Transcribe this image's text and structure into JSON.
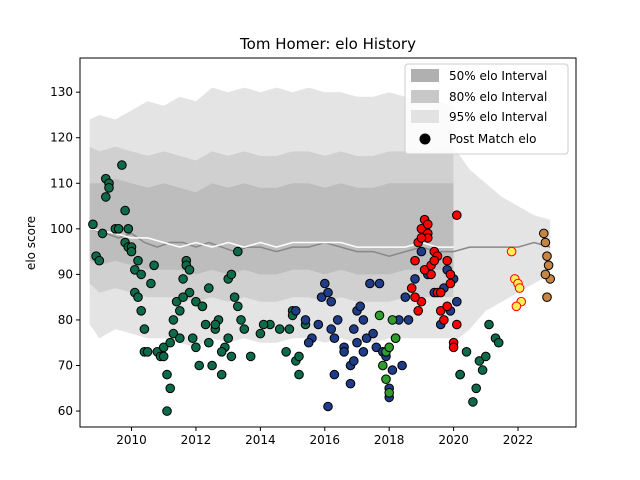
{
  "chart_data": {
    "type": "scatter",
    "title": "Tom Homer: elo History",
    "xlabel": "",
    "ylabel": "elo score",
    "xlim": [
      2008.4,
      2023.8
    ],
    "ylim": [
      56.5,
      137.5
    ],
    "xticks": [
      2010,
      2012,
      2014,
      2016,
      2018,
      2020,
      2022
    ],
    "yticks": [
      60,
      70,
      80,
      90,
      100,
      110,
      120,
      130
    ],
    "legend": {
      "position": "top-right",
      "items": [
        {
          "label": "50% elo Interval",
          "kind": "patch",
          "color": "#b0b0b0"
        },
        {
          "label": "80% elo Interval",
          "kind": "patch",
          "color": "#c8c8c8"
        },
        {
          "label": "95% elo Interval",
          "kind": "patch",
          "color": "#e2e2e2"
        },
        {
          "label": "Post Match elo",
          "kind": "dot",
          "color": "#000000"
        }
      ]
    },
    "colors": {
      "green_dark": "#0d6b4a",
      "navy": "#1f3c88",
      "green": "#2e9e2e",
      "red": "#ff0000",
      "yellow": "#ffee55",
      "yellow_edge": "#ff0000",
      "tan": "#c68642",
      "mean_line": "#888888",
      "median_line": "#ffffff"
    },
    "mean_line": {
      "x": [
        2008.7,
        2009.2,
        2009.6,
        2010.0,
        2010.4,
        2010.8,
        2011.2,
        2011.6,
        2012.0,
        2012.4,
        2012.8,
        2013.2,
        2013.6,
        2014.0,
        2014.5,
        2015.0,
        2015.5,
        2016.0,
        2016.5,
        2017.0,
        2017.5,
        2018.0,
        2018.5,
        2019.0,
        2019.5,
        2020.0,
        2020.5,
        2021.0,
        2021.5,
        2022.0,
        2022.5,
        2023.0
      ],
      "y": [
        100,
        99,
        98,
        99,
        97,
        96,
        97,
        97,
        96,
        97,
        96,
        95,
        96,
        96,
        95,
        96,
        96,
        97,
        96,
        95,
        95,
        94,
        95,
        96,
        95,
        95,
        96,
        96,
        96,
        96,
        97,
        96
      ]
    },
    "median_line": {
      "x": [
        2008.7,
        2009.5,
        2010.0,
        2010.5,
        2011.0,
        2011.5,
        2012.0,
        2012.5,
        2013.0,
        2013.5,
        2014.0,
        2014.5,
        2015.0,
        2015.5,
        2016.0,
        2016.5,
        2017.0,
        2017.5,
        2018.0,
        2018.5,
        2019.0,
        2019.5,
        2020.0
      ],
      "y": [
        100,
        99,
        98,
        98,
        97,
        96,
        97,
        96,
        97,
        96,
        97,
        96,
        97,
        97,
        97,
        97,
        96,
        96,
        96,
        96,
        97,
        96,
        96
      ]
    },
    "intervals": {
      "x": [
        2008.7,
        2009.0,
        2009.5,
        2010.0,
        2010.5,
        2011.0,
        2011.5,
        2012.0,
        2012.5,
        2013.0,
        2013.5,
        2014.0,
        2014.5,
        2015.0,
        2015.5,
        2016.0,
        2016.5,
        2017.0,
        2017.5,
        2018.0,
        2018.5,
        2019.0,
        2019.5,
        2020.0
      ],
      "p50_lo": [
        93,
        92,
        93,
        92,
        91,
        91,
        91,
        90,
        91,
        90,
        91,
        90,
        90,
        91,
        91,
        90,
        91,
        90,
        90,
        90,
        91,
        91,
        91,
        91
      ],
      "p50_hi": [
        110,
        110,
        111,
        110,
        109,
        110,
        109,
        108,
        110,
        109,
        110,
        109,
        109,
        110,
        110,
        109,
        110,
        109,
        109,
        110,
        110,
        110,
        110,
        110
      ],
      "p80_lo": [
        88,
        86,
        87,
        86,
        85,
        85,
        85,
        84,
        85,
        84,
        85,
        84,
        84,
        85,
        85,
        84,
        85,
        84,
        84,
        84,
        85,
        85,
        85,
        85
      ],
      "p80_hi": [
        118,
        117,
        118,
        117,
        116,
        117,
        116,
        115,
        117,
        116,
        117,
        116,
        116,
        117,
        117,
        116,
        117,
        116,
        116,
        117,
        117,
        117,
        117,
        117
      ],
      "p95_lo": [
        79,
        76,
        78,
        77,
        76,
        76,
        75,
        74,
        76,
        75,
        76,
        75,
        75,
        76,
        76,
        75,
        76,
        75,
        75,
        76,
        76,
        76,
        76,
        76
      ],
      "p95_hi": [
        124,
        125,
        124,
        126,
        128,
        127,
        129,
        128,
        131,
        130,
        131,
        130,
        131,
        130,
        131,
        130,
        130,
        129,
        129,
        130,
        129,
        128,
        128,
        127
      ]
    },
    "tail_band": {
      "x": [
        2020.0,
        2020.5,
        2021.0,
        2021.5,
        2022.0,
        2022.5,
        2023.0
      ],
      "hi": [
        118,
        113,
        110,
        107,
        105,
        103,
        102
      ],
      "lo": [
        75,
        78,
        82,
        84,
        86,
        88,
        90
      ]
    },
    "series": [
      {
        "name": "period-1",
        "color_key": "green_dark",
        "x": [
          2008.8,
          2008.9,
          2009.0,
          2009.1,
          2009.2,
          2009.3,
          2009.5,
          2009.6,
          2009.7,
          2009.8,
          2009.9,
          2010.0,
          2010.1,
          2010.2,
          2010.3,
          2010.4,
          2010.5,
          2010.6,
          2010.7,
          2010.8,
          2010.9,
          2011.0,
          2011.1,
          2011.2,
          2011.3,
          2011.4,
          2011.5,
          2011.6,
          2011.7,
          2011.8,
          2011.9,
          2012.0,
          2012.1,
          2012.2,
          2012.3,
          2012.4,
          2012.5,
          2012.6,
          2012.7,
          2012.8,
          2012.9,
          2013.0,
          2013.1,
          2013.2,
          2013.3,
          2013.4,
          2013.5,
          2013.7,
          2014.0,
          2014.3,
          2014.6,
          2014.8,
          2015.0,
          2015.1,
          2015.2,
          2015.4,
          2009.2,
          2009.3,
          2009.8,
          2009.9,
          2010.0,
          2010.1,
          2010.2,
          2010.3,
          2010.4,
          2011.0,
          2011.1,
          2011.2,
          2011.3,
          2011.5,
          2011.6,
          2011.7,
          2011.8,
          2012.0,
          2012.2,
          2012.4,
          2012.6,
          2012.8,
          2013.0,
          2013.1,
          2013.3,
          2014.1,
          2014.9,
          2015.0,
          2015.2
        ],
        "y": [
          101,
          94,
          93,
          99,
          111,
          110,
          100,
          100,
          114,
          97,
          96,
          96,
          91,
          93,
          90,
          73,
          73,
          88,
          92,
          73,
          72,
          72,
          60,
          65,
          77,
          84,
          82,
          89,
          93,
          86,
          76,
          74,
          70,
          83,
          79,
          75,
          70,
          78,
          80,
          68,
          74,
          76,
          72,
          85,
          95,
          80,
          78,
          72,
          77,
          79,
          78,
          73,
          82,
          71,
          68,
          79,
          107,
          109,
          104,
          100,
          95,
          86,
          85,
          82,
          78,
          74,
          68,
          75,
          80,
          76,
          85,
          92,
          91,
          84,
          83,
          87,
          79,
          73,
          89,
          90,
          83,
          79,
          78,
          81,
          72
        ]
      },
      {
        "name": "period-2",
        "color_key": "navy",
        "x": [
          2015.1,
          2015.4,
          2015.6,
          2015.8,
          2015.9,
          2016.0,
          2016.1,
          2016.2,
          2016.3,
          2016.4,
          2016.6,
          2016.8,
          2016.9,
          2017.0,
          2017.1,
          2017.2,
          2017.3,
          2017.4,
          2017.6,
          2017.8,
          2017.9,
          2018.0,
          2018.1,
          2018.2,
          2018.3,
          2018.5,
          2018.6,
          2018.8,
          2019.0,
          2019.2,
          2019.4,
          2019.6,
          2019.8,
          2020.0,
          2020.1,
          2020.2,
          2016.1,
          2016.3,
          2016.6,
          2016.8,
          2017.2,
          2017.5,
          2017.7,
          2018.0,
          2018.4,
          2019.7,
          2019.9,
          2015.5,
          2016.2,
          2016.9,
          2017.0
        ],
        "y": [
          82,
          80,
          76,
          79,
          85,
          88,
          86,
          84,
          76,
          80,
          74,
          70,
          78,
          82,
          83,
          73,
          76,
          88,
          74,
          73,
          72,
          65,
          69,
          76,
          80,
          85,
          80,
          89,
          95,
          90,
          86,
          79,
          91,
          89,
          84,
          68,
          61,
          68,
          73,
          66,
          80,
          77,
          88,
          63,
          70,
          87,
          82,
          75,
          78,
          71,
          75
        ]
      },
      {
        "name": "period-3",
        "color_key": "green",
        "x": [
          2017.7,
          2017.9,
          2018.0,
          2018.1,
          2017.9,
          2018.0,
          2017.8,
          2018.2
        ],
        "y": [
          81,
          73,
          74,
          80,
          67,
          64,
          70,
          76
        ]
      },
      {
        "name": "period-4",
        "color_key": "red",
        "x": [
          2018.7,
          2018.8,
          2018.9,
          2019.0,
          2019.1,
          2019.2,
          2019.3,
          2019.4,
          2019.5,
          2019.6,
          2019.7,
          2019.8,
          2019.9,
          2020.0,
          2020.1,
          2018.9,
          2019.0,
          2019.1,
          2019.2,
          2019.3,
          2019.5,
          2019.8,
          2019.9,
          2020.0,
          2020.1,
          2019.0,
          2019.4,
          2019.6,
          2018.8,
          2019.2
        ],
        "y": [
          87,
          93,
          97,
          100,
          102,
          99,
          90,
          95,
          94,
          82,
          80,
          93,
          88,
          75,
          103,
          82,
          84,
          91,
          98,
          92,
          86,
          83,
          90,
          74,
          79,
          98,
          93,
          86,
          85,
          101
        ]
      },
      {
        "name": "period-5",
        "color_key": "green_dark",
        "x": [
          2020.2,
          2020.4,
          2020.6,
          2020.7,
          2020.8,
          2020.9,
          2021.0,
          2021.1,
          2021.3,
          2021.4
        ],
        "y": [
          68,
          73,
          62,
          65,
          71,
          69,
          72,
          79,
          76,
          75
        ]
      },
      {
        "name": "period-6",
        "color_key": "yellow",
        "x": [
          2021.8,
          2021.9,
          2022.0,
          2022.05,
          2022.1,
          2021.95
        ],
        "y": [
          95,
          89,
          88,
          87,
          84,
          83
        ]
      },
      {
        "name": "period-7",
        "color_key": "tan",
        "x": [
          2022.8,
          2022.85,
          2022.9,
          2022.95,
          2023.0,
          2022.85,
          2022.9
        ],
        "y": [
          99,
          97,
          94,
          92,
          89,
          90,
          85
        ]
      }
    ]
  }
}
